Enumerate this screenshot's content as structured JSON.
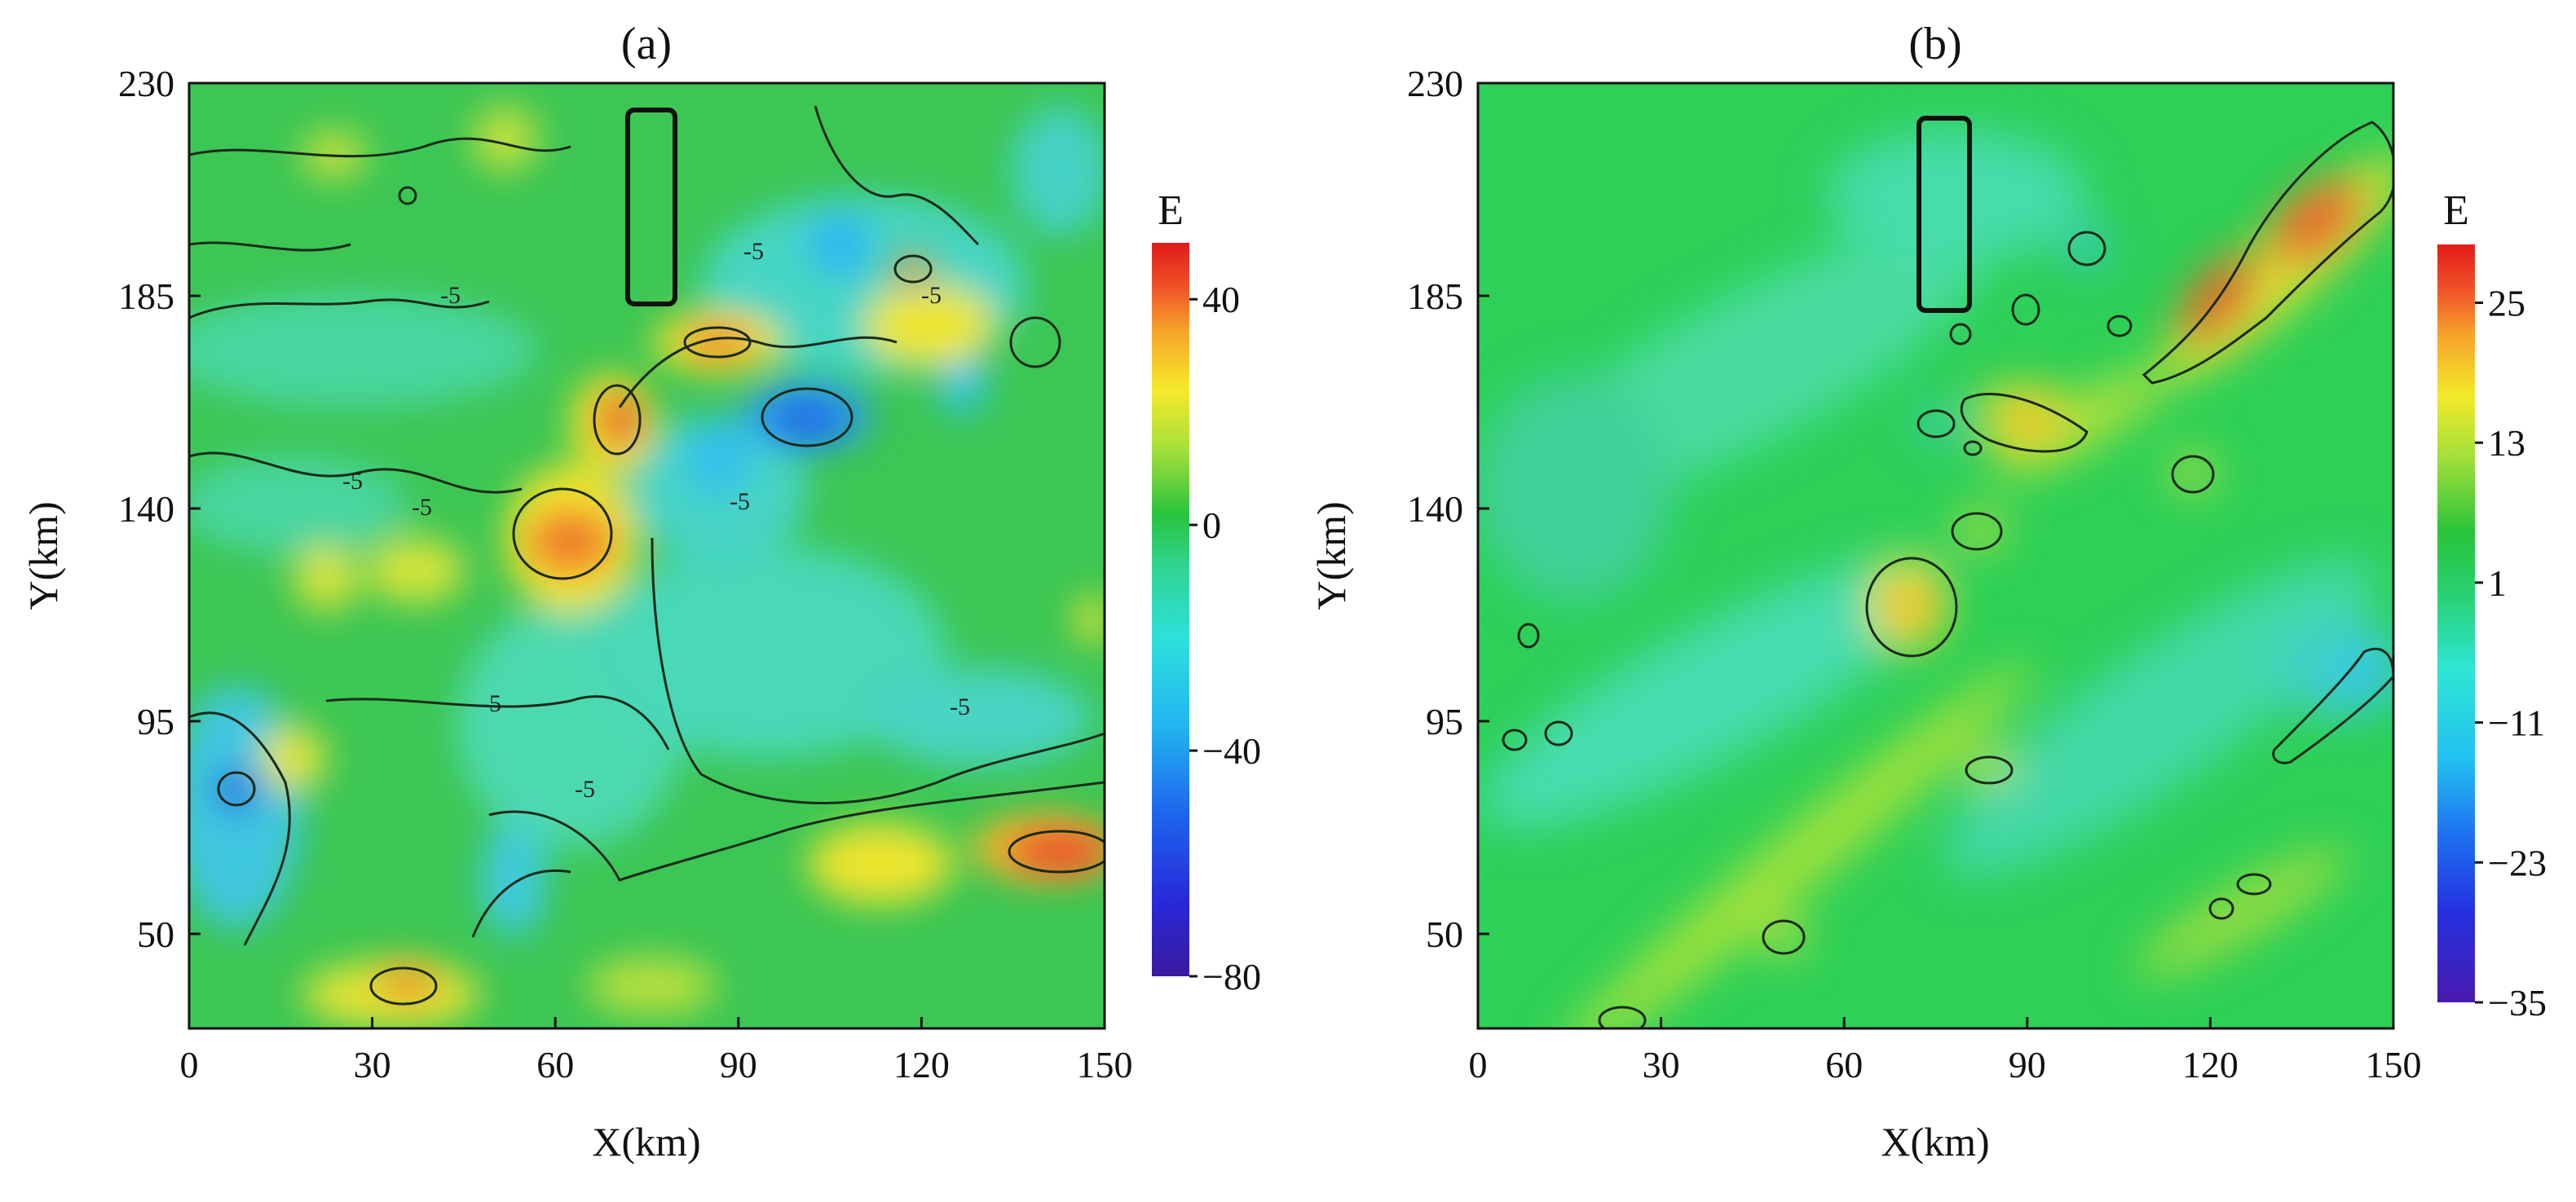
{
  "chart_data": [
    {
      "type": "heatmap",
      "title": "(a)",
      "xlabel": "X(km)",
      "ylabel": "Y(km)",
      "xlim": [
        0,
        150
      ],
      "ylim": [
        30,
        230
      ],
      "xticks": [
        "0",
        "30",
        "60",
        "90",
        "120",
        "150"
      ],
      "yticks": [
        "50",
        "95",
        "140",
        "185",
        "230"
      ],
      "colorbar": {
        "title": "E",
        "ticks": [
          "40",
          "0",
          "-40",
          "-80"
        ],
        "range": [
          -80,
          50
        ]
      },
      "contour_labels": [
        "-5",
        "-5",
        "-5",
        "-5",
        "-5",
        "-5",
        "-5",
        "-5",
        "-5"
      ],
      "highlight_box": {
        "x": [
          73,
          80
        ],
        "y": [
          185,
          225
        ]
      },
      "anomalies": [
        {
          "x": 72,
          "y": 157,
          "value": 40
        },
        {
          "x": 68,
          "y": 127,
          "value": 35
        },
        {
          "x": 88,
          "y": 175,
          "value": 30
        },
        {
          "x": 120,
          "y": 176,
          "value": 25
        },
        {
          "x": 145,
          "y": 63,
          "value": 45
        },
        {
          "x": 36,
          "y": 38,
          "value": 30
        },
        {
          "x": 102,
          "y": 155,
          "value": -45
        },
        {
          "x": 105,
          "y": 187,
          "value": -30
        },
        {
          "x": 8,
          "y": 75,
          "value": -35
        },
        {
          "x": 95,
          "y": 105,
          "value": -15
        },
        {
          "x": 55,
          "y": 60,
          "value": -15
        }
      ]
    },
    {
      "type": "heatmap",
      "title": "(b)",
      "xlabel": "X(km)",
      "ylabel": "Y(km)",
      "xlim": [
        0,
        150
      ],
      "ylim": [
        30,
        230
      ],
      "xticks": [
        "0",
        "30",
        "60",
        "90",
        "120",
        "150"
      ],
      "yticks": [
        "50",
        "95",
        "140",
        "185",
        "230"
      ],
      "colorbar": {
        "title": "E",
        "ticks": [
          "25",
          "13",
          "1",
          "-11",
          "-23",
          "-35"
        ],
        "range": [
          -35,
          30
        ]
      },
      "highlight_box": {
        "x": [
          73,
          81
        ],
        "y": [
          185,
          225
        ]
      },
      "anomalies": [
        {
          "x": 148,
          "y": 215,
          "value": 25
        },
        {
          "x": 125,
          "y": 185,
          "value": 25
        },
        {
          "x": 90,
          "y": 155,
          "value": 15
        },
        {
          "x": 75,
          "y": 118,
          "value": 15
        },
        {
          "x": 83,
          "y": 130,
          "value": 10
        },
        {
          "x": 118,
          "y": 143,
          "value": 8
        },
        {
          "x": 50,
          "y": 42,
          "value": 8
        },
        {
          "x": 100,
          "y": 195,
          "value": -15
        },
        {
          "x": 150,
          "y": 100,
          "value": -15
        },
        {
          "x": 8,
          "y": 85,
          "value": -10
        }
      ]
    }
  ]
}
